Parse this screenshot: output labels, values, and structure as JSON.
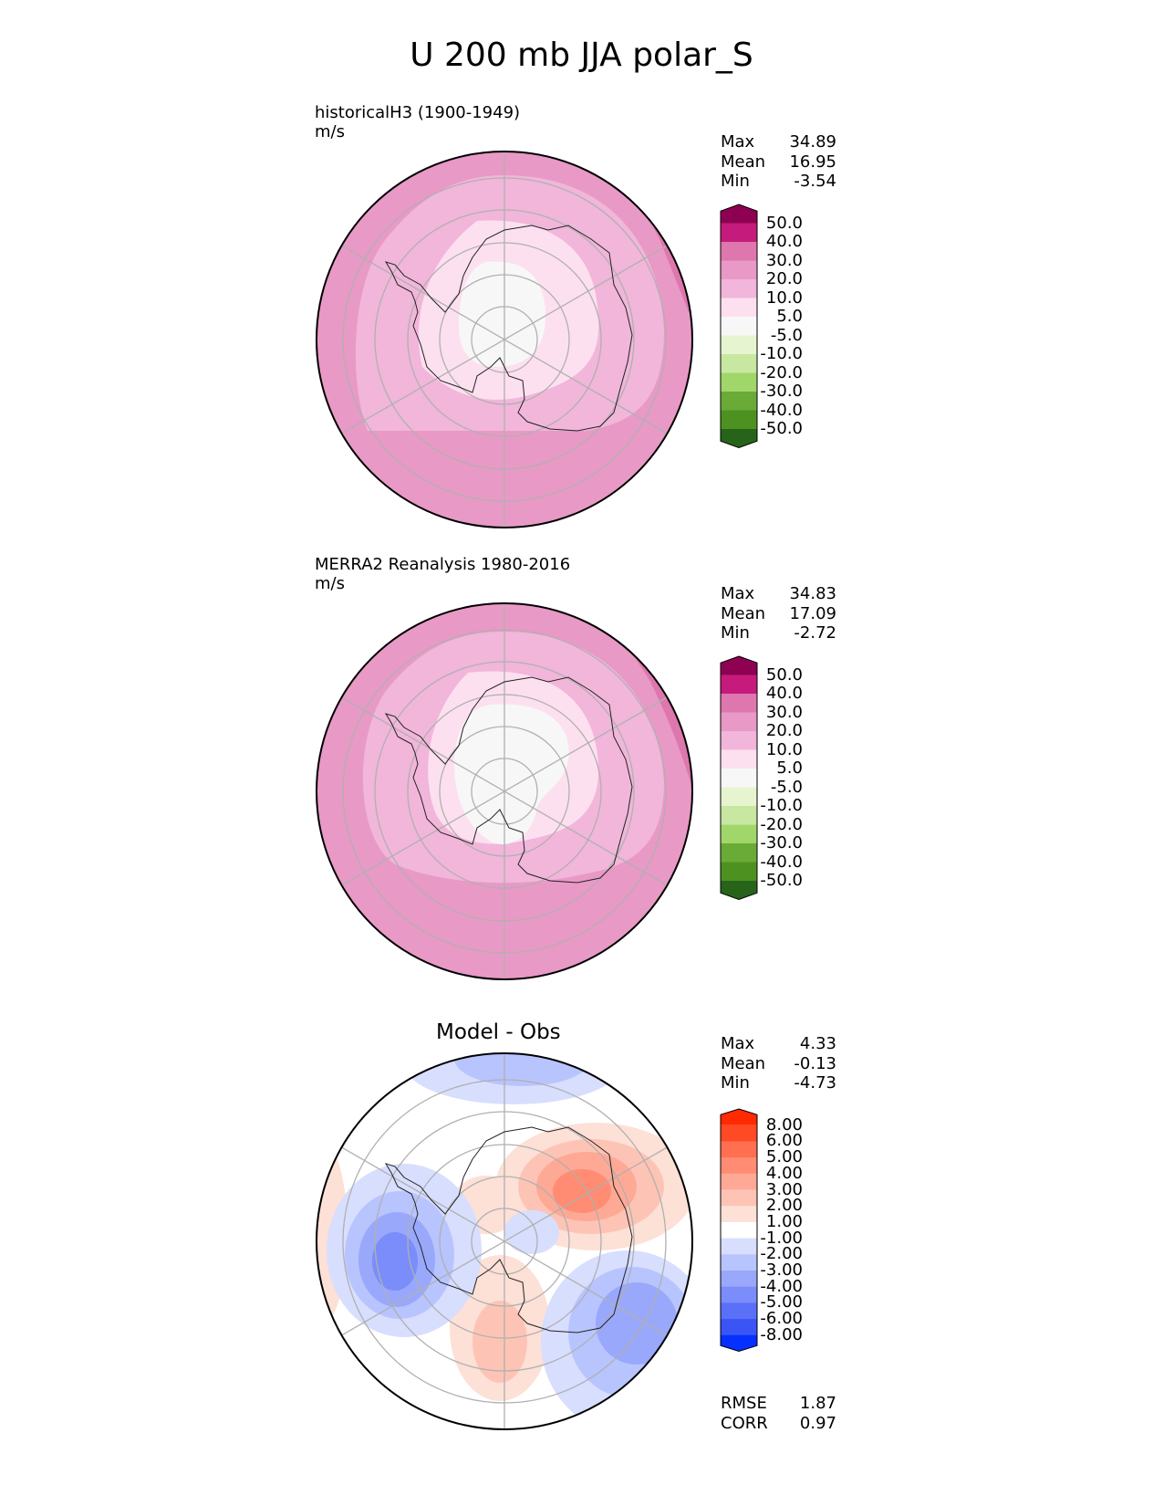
{
  "title": "U 200 mb JJA polar_S",
  "panels": [
    {
      "id": "test",
      "name_line": "historicalH3 (1900-1949)",
      "units": "m/s",
      "stats": [
        {
          "label": "Max",
          "value": "34.89"
        },
        {
          "label": "Mean",
          "value": "16.95"
        },
        {
          "label": "Min",
          "value": "-3.54"
        }
      ],
      "colorbar": {
        "ticks": [
          "50.0",
          "40.0",
          "30.0",
          "20.0",
          "10.0",
          "5.0",
          "-5.0",
          "-10.0",
          "-20.0",
          "-30.0",
          "-40.0",
          "-50.0"
        ],
        "colors": [
          "#8e0152",
          "#c51b7d",
          "#de77ae",
          "#e899c6",
          "#f1b6da",
          "#fde0ef",
          "#f7f7f7",
          "#e6f5d0",
          "#c8e8a2",
          "#a1d76a",
          "#6aab37",
          "#4d9221",
          "#276419"
        ]
      }
    },
    {
      "id": "ref",
      "name_line": "MERRA2 Reanalysis 1980-2016",
      "units": "m/s",
      "stats": [
        {
          "label": "Max",
          "value": "34.83"
        },
        {
          "label": "Mean",
          "value": "17.09"
        },
        {
          "label": "Min",
          "value": "-2.72"
        }
      ],
      "colorbar": {
        "ticks": [
          "50.0",
          "40.0",
          "30.0",
          "20.0",
          "10.0",
          "5.0",
          "-5.0",
          "-10.0",
          "-20.0",
          "-30.0",
          "-40.0",
          "-50.0"
        ],
        "colors": [
          "#8e0152",
          "#c51b7d",
          "#de77ae",
          "#e899c6",
          "#f1b6da",
          "#fde0ef",
          "#f7f7f7",
          "#e6f5d0",
          "#c8e8a2",
          "#a1d76a",
          "#6aab37",
          "#4d9221",
          "#276419"
        ]
      }
    },
    {
      "id": "diff",
      "subtitle": "Model - Obs",
      "stats": [
        {
          "label": "Max",
          "value": "4.33"
        },
        {
          "label": "Mean",
          "value": "-0.13"
        },
        {
          "label": "Min",
          "value": "-4.73"
        }
      ],
      "colorbar": {
        "ticks": [
          "8.00",
          "6.00",
          "5.00",
          "4.00",
          "3.00",
          "2.00",
          "1.00",
          "-1.00",
          "-2.00",
          "-3.00",
          "-4.00",
          "-5.00",
          "-6.00",
          "-8.00"
        ],
        "colors": [
          "#ff2a00",
          "#ff4a24",
          "#ff6f50",
          "#ff8c73",
          "#fea996",
          "#fdc4b5",
          "#fde0d6",
          "#ffffff",
          "#d8defe",
          "#b8c4fd",
          "#99a8fb",
          "#7a8dfa",
          "#5a70f8",
          "#3a54f6",
          "#0530fd"
        ]
      },
      "metrics": [
        {
          "label": "RMSE",
          "value": "1.87"
        },
        {
          "label": "CORR",
          "value": "0.97"
        }
      ]
    }
  ]
}
